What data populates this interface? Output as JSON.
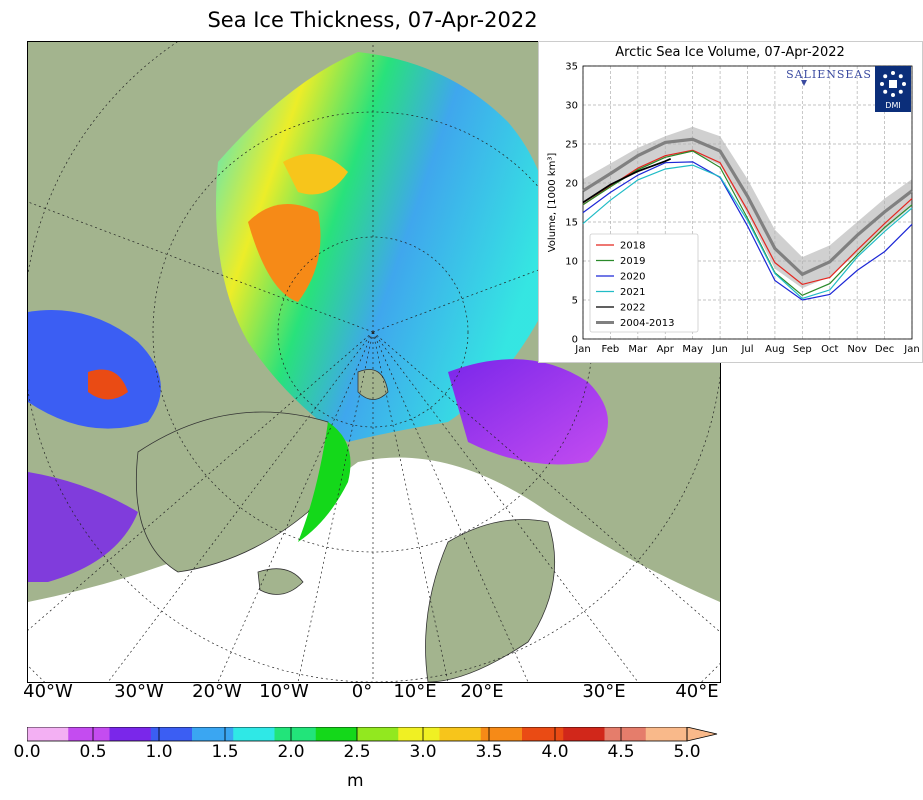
{
  "map": {
    "title": "Sea Ice Thickness, 07-Apr-2022",
    "lon_labels": [
      "40°W",
      "30°W",
      "20°W",
      "10°W",
      "0°",
      "10°E",
      "20°E",
      "30°E",
      "40°E"
    ],
    "colorbar": {
      "ticks": [
        "0.0",
        "0.5",
        "1.0",
        "1.5",
        "2.0",
        "2.5",
        "3.0",
        "3.5",
        "4.0",
        "4.5",
        "5.0"
      ],
      "unit": "m",
      "colors": [
        "#f3b0f3",
        "#c44cf0",
        "#7a27ea",
        "#3b5ef3",
        "#3aa6f2",
        "#2fe8e6",
        "#22e47a",
        "#14d81a",
        "#92e81f",
        "#f0f023",
        "#f7c51b",
        "#f68a17",
        "#ea4b14",
        "#d1271a",
        "#e57d6b",
        "#f9b98a"
      ]
    }
  },
  "chart_data": {
    "type": "line",
    "title": "Arctic Sea Ice Volume, 07-Apr-2022",
    "ylabel": "Volume, [1000 km³]",
    "xlabel": "",
    "ylim": [
      0,
      35
    ],
    "yticks": [
      "0",
      "5",
      "10",
      "15",
      "20",
      "25",
      "30",
      "35"
    ],
    "xticks": [
      "Jan",
      "Feb",
      "Mar",
      "Apr",
      "May",
      "Jun",
      "Jul",
      "Aug",
      "Sep",
      "Oct",
      "Nov",
      "Dec",
      "Jan"
    ],
    "grid": true,
    "legend_position": "lower-left",
    "branding": [
      "SALIENSEAS",
      "DMI"
    ],
    "x": [
      0,
      1,
      2,
      3,
      4,
      5,
      6,
      7,
      8,
      9,
      10,
      11,
      12
    ],
    "band": {
      "upper": [
        20.5,
        22.5,
        24.5,
        26.0,
        27.2,
        26.0,
        20.5,
        14.0,
        10.5,
        12.0,
        15.0,
        18.0,
        20.5
      ],
      "lower": [
        17.5,
        19.5,
        21.5,
        23.3,
        24.0,
        22.3,
        16.0,
        9.0,
        6.5,
        8.0,
        11.0,
        14.0,
        17.0
      ]
    },
    "series": [
      {
        "name": "2018",
        "color": "#e4261f",
        "x": [
          0,
          1,
          2,
          3,
          4,
          5,
          6,
          7,
          8,
          9,
          10,
          11,
          12
        ],
        "values": [
          17.2,
          19.6,
          21.9,
          23.5,
          24.2,
          22.6,
          16.5,
          9.8,
          7.0,
          7.9,
          11.4,
          14.8,
          18.0
        ]
      },
      {
        "name": "2019",
        "color": "#2a8a2a",
        "x": [
          0,
          1,
          2,
          3,
          4,
          5,
          6,
          7,
          8,
          9,
          10,
          11,
          12
        ],
        "values": [
          17.2,
          19.5,
          21.7,
          23.3,
          24.1,
          22.0,
          15.5,
          8.5,
          5.6,
          7.1,
          10.8,
          14.3,
          17.2
        ]
      },
      {
        "name": "2020",
        "color": "#1c27d6",
        "x": [
          0,
          1,
          2,
          3,
          4,
          5,
          6,
          7,
          8,
          9,
          10,
          11,
          12
        ],
        "values": [
          16.2,
          18.8,
          21.0,
          22.6,
          22.7,
          20.7,
          14.5,
          7.5,
          5.0,
          5.7,
          8.8,
          11.2,
          14.7
        ]
      },
      {
        "name": "2021",
        "color": "#21bcc6",
        "x": [
          0,
          1,
          2,
          3,
          4,
          5,
          6,
          7,
          8,
          9,
          10,
          11,
          12
        ],
        "values": [
          14.8,
          17.8,
          20.4,
          21.8,
          22.3,
          20.8,
          15.2,
          8.4,
          5.2,
          6.3,
          10.5,
          13.8,
          16.8
        ]
      },
      {
        "name": "2022",
        "color": "#000000",
        "x": [
          0,
          1,
          2,
          3,
          3.2
        ],
        "values": [
          17.5,
          19.8,
          21.5,
          22.8,
          23.1
        ]
      },
      {
        "name": "2004-2013",
        "color": "#808080",
        "x": [
          0,
          1,
          2,
          3,
          4,
          5,
          6,
          7,
          8,
          9,
          10,
          11,
          12
        ],
        "values": [
          19.0,
          21.2,
          23.5,
          25.2,
          25.6,
          24.1,
          18.3,
          11.6,
          8.3,
          9.9,
          13.3,
          16.3,
          19.0
        ]
      }
    ]
  }
}
